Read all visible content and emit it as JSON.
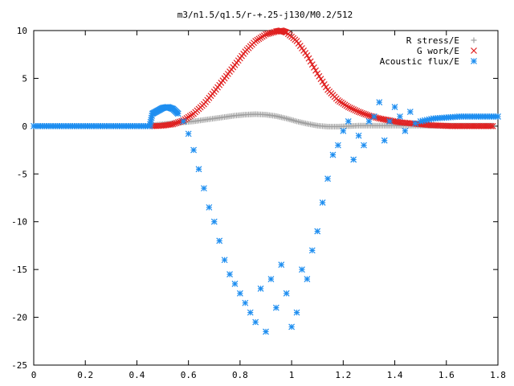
{
  "chart_data": {
    "type": "scatter",
    "title": "m3/n1.5/q1.5/r-+.25-j130/M0.2/512",
    "xlabel": "",
    "ylabel": "",
    "xlim": [
      0,
      1.8
    ],
    "ylim": [
      -25,
      10
    ],
    "x_ticks": [
      0,
      0.2,
      0.4,
      0.6,
      0.8,
      1,
      1.2,
      1.4,
      1.6,
      1.8
    ],
    "x_tick_labels": [
      "0",
      "0.2",
      "0.4",
      "0.6",
      "0.8",
      "1",
      "1.2",
      "1.4",
      "1.6",
      "1.8"
    ],
    "y_ticks": [
      10,
      5,
      0,
      -5,
      -10,
      -15,
      -20,
      -25
    ],
    "y_tick_labels": [
      "10",
      "5",
      "0",
      "-5",
      "-10",
      "-15",
      "-20",
      "-25"
    ],
    "grid": false,
    "legend_position": "top-right",
    "series": [
      {
        "name": "R stress/E",
        "marker": "plus",
        "color": "#a0a0a0",
        "x": [
          0.46,
          0.5,
          0.54,
          0.58,
          0.62,
          0.66,
          0.7,
          0.74,
          0.78,
          0.82,
          0.86,
          0.9,
          0.94,
          0.98,
          1.02,
          1.06,
          1.1,
          1.14,
          1.18,
          1.22,
          1.26,
          1.3,
          1.34,
          1.38,
          1.42,
          1.46,
          1.5,
          1.54,
          1.58,
          1.62,
          1.66,
          1.7,
          1.74,
          1.78
        ],
        "y": [
          0.1,
          0.2,
          0.3,
          0.4,
          0.5,
          0.65,
          0.8,
          0.95,
          1.1,
          1.2,
          1.25,
          1.2,
          1.05,
          0.8,
          0.5,
          0.25,
          0.05,
          -0.05,
          -0.05,
          0.0,
          0.05,
          0.05,
          0.05,
          0.05,
          0.05,
          0.05,
          0.05,
          0.05,
          0.05,
          0.05,
          0.05,
          0.05,
          0.05,
          0.05
        ]
      },
      {
        "name": "G work/E",
        "marker": "cross",
        "color": "#e02020",
        "x": [
          0.46,
          0.5,
          0.54,
          0.58,
          0.62,
          0.66,
          0.7,
          0.74,
          0.78,
          0.82,
          0.86,
          0.9,
          0.94,
          0.96,
          0.98,
          1.02,
          1.06,
          1.1,
          1.14,
          1.18,
          1.22,
          1.26,
          1.3,
          1.34,
          1.38,
          1.42,
          1.46,
          1.5,
          1.54,
          1.58,
          1.62,
          1.66,
          1.7,
          1.74,
          1.78
        ],
        "y": [
          0.0,
          0.05,
          0.2,
          0.6,
          1.3,
          2.3,
          3.6,
          5.0,
          6.4,
          7.8,
          8.9,
          9.6,
          9.9,
          10.0,
          9.8,
          8.9,
          7.4,
          5.5,
          3.8,
          2.7,
          2.0,
          1.5,
          1.1,
          0.8,
          0.6,
          0.4,
          0.3,
          0.2,
          0.1,
          0.05,
          0.0,
          0.0,
          0.0,
          0.0,
          0.0
        ]
      },
      {
        "name": "Acoustic flux/E",
        "marker": "star",
        "color": "#1e8ef0",
        "x": [
          0.0,
          0.05,
          0.1,
          0.15,
          0.2,
          0.25,
          0.3,
          0.35,
          0.4,
          0.45,
          0.46,
          0.48,
          0.5,
          0.52,
          0.54,
          0.56,
          0.58,
          0.6,
          0.62,
          0.64,
          0.66,
          0.68,
          0.7,
          0.72,
          0.74,
          0.76,
          0.78,
          0.8,
          0.82,
          0.84,
          0.86,
          0.88,
          0.9,
          0.92,
          0.94,
          0.96,
          0.98,
          1.0,
          1.02,
          1.04,
          1.06,
          1.08,
          1.1,
          1.12,
          1.14,
          1.16,
          1.18,
          1.2,
          1.22,
          1.24,
          1.26,
          1.28,
          1.3,
          1.32,
          1.34,
          1.36,
          1.38,
          1.4,
          1.42,
          1.44,
          1.46,
          1.48,
          1.5,
          1.55,
          1.6,
          1.65,
          1.7,
          1.75,
          1.8
        ],
        "y": [
          0.0,
          0.0,
          0.0,
          0.0,
          0.0,
          0.0,
          0.0,
          0.0,
          0.0,
          0.0,
          1.3,
          1.6,
          1.9,
          2.0,
          1.8,
          1.3,
          0.5,
          -0.8,
          -2.5,
          -4.5,
          -6.5,
          -8.5,
          -10.0,
          -12.0,
          -14.0,
          -15.5,
          -16.5,
          -17.5,
          -18.5,
          -19.5,
          -20.5,
          -17.0,
          -21.5,
          -16.0,
          -19.0,
          -14.5,
          -17.5,
          -21.0,
          -19.5,
          -15.0,
          -16.0,
          -13.0,
          -11.0,
          -8.0,
          -5.5,
          -3.0,
          -2.0,
          -0.5,
          0.5,
          -3.5,
          -1.0,
          -2.0,
          0.5,
          1.0,
          2.5,
          -1.5,
          0.5,
          2.0,
          1.0,
          -0.5,
          1.5,
          0.3,
          0.5,
          0.8,
          0.9,
          1.0,
          1.0,
          1.0,
          1.0
        ]
      }
    ]
  }
}
